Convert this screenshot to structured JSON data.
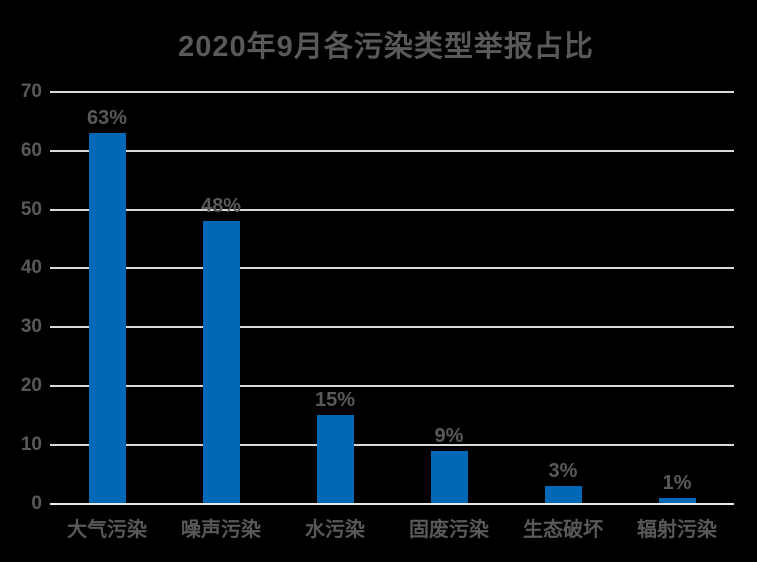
{
  "title": "2020年9月各污染类型举报占比",
  "chart_data": {
    "type": "bar",
    "title": "2020年9月各污染类型举报占比",
    "categories": [
      "大气污染",
      "噪声污染",
      "水污染",
      "固废污染",
      "生态破坏",
      "辐射污染"
    ],
    "values": [
      63,
      48,
      15,
      9,
      3,
      1
    ],
    "data_labels": [
      "63%",
      "48%",
      "15%",
      "9%",
      "3%",
      "1%"
    ],
    "xlabel": "",
    "ylabel": "",
    "ylim": [
      0,
      70
    ],
    "ytick_interval": 10,
    "ytick_labels": [
      "0",
      "10",
      "20",
      "30",
      "40",
      "50",
      "60",
      "70"
    ],
    "grid": "horizontal",
    "legend": "none",
    "unit": "percent",
    "colors": {
      "bar": "#0068B5",
      "text": "#595959",
      "gridline": "#D9D9D9",
      "axis_line": "#E8E8E8",
      "background": "#000000"
    }
  }
}
